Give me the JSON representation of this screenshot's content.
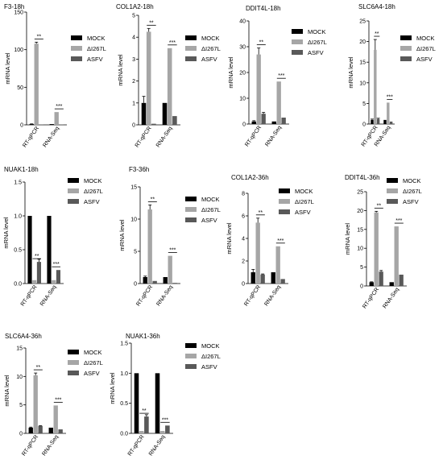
{
  "colors": {
    "MOCK": "#000000",
    "ΔI267L": "#a6a6a6",
    "ASFV": "#595959"
  },
  "chart_data": [
    {
      "type": "bar",
      "title": "F3-18h",
      "ylabel": "mRNA level",
      "categories": [
        "RT-qPCR",
        "RNA-Seq"
      ],
      "ylim": [
        0,
        150
      ],
      "yticks": [
        0,
        50,
        100,
        150
      ],
      "series": [
        {
          "name": "MOCK",
          "values": [
            1,
            1
          ],
          "errors": [
            0.3,
            0
          ]
        },
        {
          "name": "ΔI267L",
          "values": [
            108,
            17
          ],
          "errors": [
            2,
            0
          ]
        },
        {
          "name": "ASFV",
          "values": [
            0.5,
            0.5
          ],
          "errors": [
            0,
            0
          ]
        }
      ],
      "annotations": [
        {
          "category": 0,
          "text": "**"
        },
        {
          "category": 1,
          "text": "***"
        }
      ]
    },
    {
      "type": "bar",
      "title": "COL1A2-18h",
      "ylabel": "mRNA level",
      "categories": [
        "RT-qPCR",
        "RNA-Seq"
      ],
      "ylim": [
        0,
        5
      ],
      "yticks": [
        0,
        1,
        2,
        3,
        4,
        5
      ],
      "series": [
        {
          "name": "MOCK",
          "values": [
            1.0,
            1.0
          ],
          "errors": [
            0.3,
            0
          ]
        },
        {
          "name": "ΔI267L",
          "values": [
            4.25,
            3.5
          ],
          "errors": [
            0.15,
            0
          ]
        },
        {
          "name": "ASFV",
          "values": [
            0.05,
            0.4
          ],
          "errors": [
            0,
            0
          ]
        }
      ],
      "annotations": [
        {
          "category": 0,
          "text": "**"
        },
        {
          "category": 1,
          "text": "***"
        }
      ]
    },
    {
      "type": "bar",
      "title": "DDIT4L-18h",
      "ylabel": "mRNA level",
      "categories": [
        "RT-qPCR",
        "RNA-Seq"
      ],
      "ylim": [
        0,
        40
      ],
      "yticks": [
        0,
        10,
        20,
        30,
        40
      ],
      "series": [
        {
          "name": "MOCK",
          "values": [
            1,
            1
          ],
          "errors": [
            0.3,
            0
          ]
        },
        {
          "name": "ΔI267L",
          "values": [
            27,
            16.5
          ],
          "errors": [
            2.5,
            0
          ]
        },
        {
          "name": "ASFV",
          "values": [
            4,
            2.5
          ],
          "errors": [
            0.5,
            0
          ]
        }
      ],
      "annotations": [
        {
          "category": 0,
          "text": "**"
        },
        {
          "category": 1,
          "text": "***"
        }
      ]
    },
    {
      "type": "bar",
      "title": "SLC6A4-18h",
      "ylabel": "mRNA level",
      "categories": [
        "RT-qPCR",
        "RNA-Seq"
      ],
      "ylim": [
        0,
        25
      ],
      "yticks": [
        0,
        5,
        10,
        15,
        20,
        25
      ],
      "series": [
        {
          "name": "MOCK",
          "values": [
            1,
            1
          ],
          "errors": [
            0.2,
            0
          ]
        },
        {
          "name": "ΔI267L",
          "values": [
            18,
            5.2
          ],
          "errors": [
            2.5,
            0
          ]
        },
        {
          "name": "ASFV",
          "values": [
            1.2,
            0.6
          ],
          "errors": [
            0.2,
            0
          ]
        }
      ],
      "annotations": [
        {
          "category": 0,
          "text": "**"
        },
        {
          "category": 1,
          "text": "***"
        }
      ]
    },
    {
      "type": "bar",
      "title": "NUAK1-18h",
      "ylabel": "mRNA level",
      "categories": [
        "RT-qPCR",
        "RNA-Seq"
      ],
      "ylim": [
        0,
        1.5
      ],
      "yticks": [
        0.0,
        0.5,
        1.0,
        1.5
      ],
      "series": [
        {
          "name": "MOCK",
          "values": [
            1.0,
            1.0
          ],
          "errors": [
            0,
            0
          ]
        },
        {
          "name": "ΔI267L",
          "values": [
            0.05,
            0.05
          ],
          "errors": [
            0,
            0
          ]
        },
        {
          "name": "ASFV",
          "values": [
            0.32,
            0.2
          ],
          "errors": [
            0.04,
            0
          ]
        }
      ],
      "annotations": [
        {
          "category": 0,
          "text": "**"
        },
        {
          "category": 1,
          "text": "***"
        }
      ]
    },
    {
      "type": "bar",
      "title": "F3-36h",
      "ylabel": "mRNA level",
      "categories": [
        "RT-qPCR",
        "RNA-Seq"
      ],
      "ylim": [
        0,
        15
      ],
      "yticks": [
        0,
        5,
        10,
        15
      ],
      "series": [
        {
          "name": "MOCK",
          "values": [
            1,
            1
          ],
          "errors": [
            0.15,
            0
          ]
        },
        {
          "name": "ΔI267L",
          "values": [
            11.5,
            4.3
          ],
          "errors": [
            0.7,
            0
          ]
        },
        {
          "name": "ASFV",
          "values": [
            0.4,
            0.1
          ],
          "errors": [
            0,
            0
          ]
        }
      ],
      "annotations": [
        {
          "category": 0,
          "text": "**"
        },
        {
          "category": 1,
          "text": "***"
        }
      ]
    },
    {
      "type": "bar",
      "title": "COL1A2-36h",
      "ylabel": "mRNA level",
      "categories": [
        "RT-qPCR",
        "RNA-Seq"
      ],
      "ylim": [
        0,
        8
      ],
      "yticks": [
        0,
        2,
        4,
        6,
        8
      ],
      "series": [
        {
          "name": "MOCK",
          "values": [
            1,
            1
          ],
          "errors": [
            0.25,
            0
          ]
        },
        {
          "name": "ΔI267L",
          "values": [
            5.4,
            3.3
          ],
          "errors": [
            0.4,
            0
          ]
        },
        {
          "name": "ASFV",
          "values": [
            0.8,
            0.4
          ],
          "errors": [
            0.05,
            0
          ]
        }
      ],
      "annotations": [
        {
          "category": 0,
          "text": "**"
        },
        {
          "category": 1,
          "text": "***"
        }
      ]
    },
    {
      "type": "bar",
      "title": "DDIT4L-36h",
      "ylabel": "mRNA level",
      "categories": [
        "RT-qPCR",
        "RNA-Seq"
      ],
      "ylim": [
        0,
        25
      ],
      "yticks": [
        0,
        5,
        10,
        15,
        20,
        25
      ],
      "series": [
        {
          "name": "MOCK",
          "values": [
            1,
            1
          ],
          "errors": [
            0.1,
            0
          ]
        },
        {
          "name": "ΔI267L",
          "values": [
            19.5,
            15.8
          ],
          "errors": [
            0.3,
            0
          ]
        },
        {
          "name": "ASFV",
          "values": [
            3.8,
            3
          ],
          "errors": [
            0.3,
            0
          ]
        }
      ],
      "annotations": [
        {
          "category": 0,
          "text": "**"
        },
        {
          "category": 1,
          "text": "***"
        }
      ]
    },
    {
      "type": "bar",
      "title": "SLC6A4-36h",
      "ylabel": "mRNA level",
      "categories": [
        "RT-qPCR",
        "RNA-Seq"
      ],
      "ylim": [
        0,
        15
      ],
      "yticks": [
        0,
        5,
        10,
        15
      ],
      "series": [
        {
          "name": "MOCK",
          "values": [
            1,
            1
          ],
          "errors": [
            0.1,
            0
          ]
        },
        {
          "name": "ΔI267L",
          "values": [
            10.2,
            4.9
          ],
          "errors": [
            0.4,
            0
          ]
        },
        {
          "name": "ASFV",
          "values": [
            1.3,
            0.7
          ],
          "errors": [
            0.05,
            0
          ]
        }
      ],
      "annotations": [
        {
          "category": 0,
          "text": "**"
        },
        {
          "category": 1,
          "text": "***"
        }
      ]
    },
    {
      "type": "bar",
      "title": "NUAK1-36h",
      "ylabel": "mRNA level",
      "categories": [
        "RT-qPCR",
        "RNA-Seq"
      ],
      "ylim": [
        0,
        1.5
      ],
      "yticks": [
        0.0,
        0.5,
        1.0,
        1.5
      ],
      "series": [
        {
          "name": "MOCK",
          "values": [
            1.0,
            1.0
          ],
          "errors": [
            0,
            0
          ]
        },
        {
          "name": "ΔI267L",
          "values": [
            0.04,
            0.04
          ],
          "errors": [
            0,
            0
          ]
        },
        {
          "name": "ASFV",
          "values": [
            0.28,
            0.13
          ],
          "errors": [
            0.03,
            0
          ]
        }
      ],
      "annotations": [
        {
          "category": 0,
          "text": "**"
        },
        {
          "category": 1,
          "text": "***"
        }
      ]
    }
  ]
}
